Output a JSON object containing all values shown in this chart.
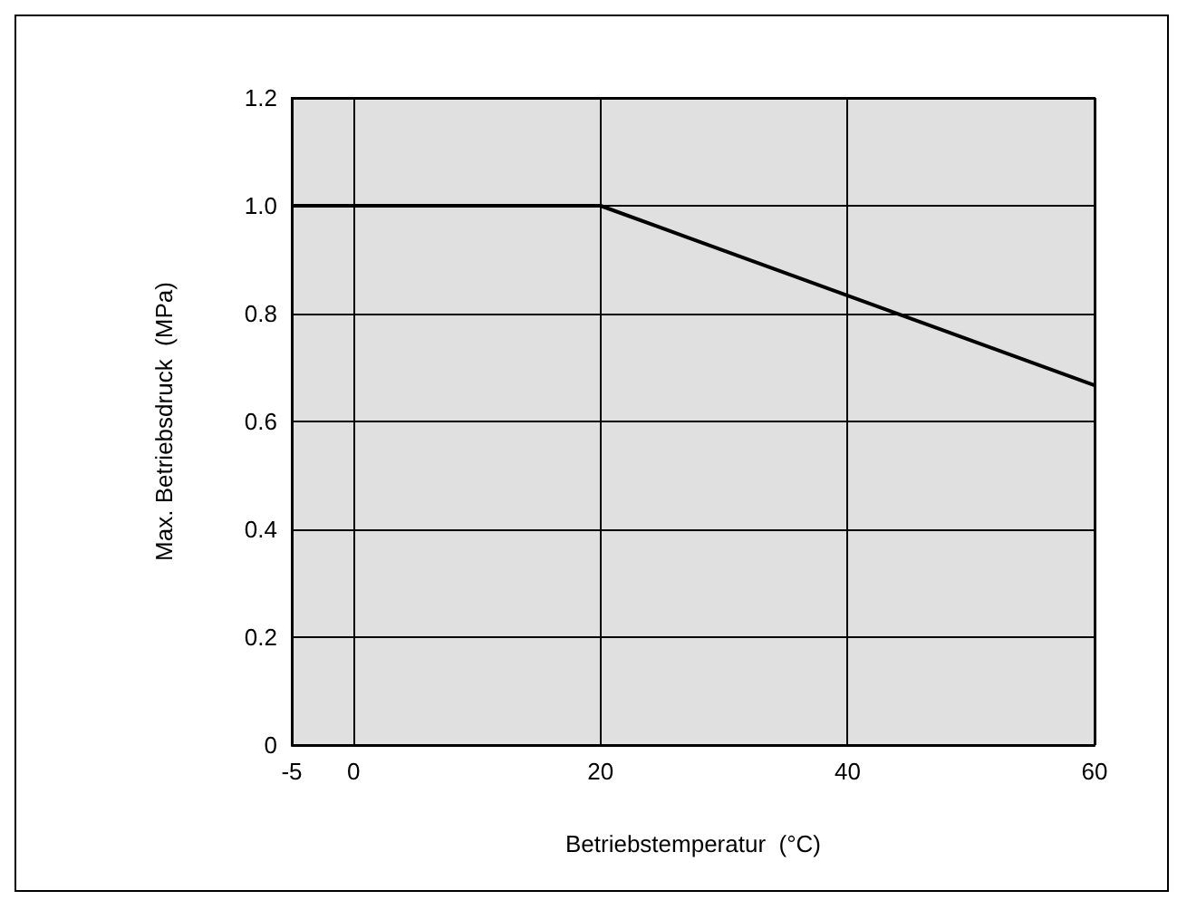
{
  "chart_data": {
    "type": "line",
    "xlabel": "Betriebstemperatur  (°C)",
    "ylabel": "Max. Betriebsdruck  (MPa)",
    "series": [
      {
        "color": "#000000",
        "x": [
          -5,
          20,
          60
        ],
        "values": [
          1.0,
          1.0,
          0.667
        ]
      }
    ],
    "xlim": [
      -5,
      60
    ],
    "xticks": [
      -5,
      0,
      20,
      40,
      60
    ],
    "ylim": [
      0,
      1.2
    ],
    "yticks": [
      0,
      0.2,
      0.4,
      0.6,
      0.8,
      {
        "value": 1,
        "label": "1.0"
      },
      1.2
    ],
    "grid": true,
    "marker": "none",
    "line_style": "solid"
  }
}
